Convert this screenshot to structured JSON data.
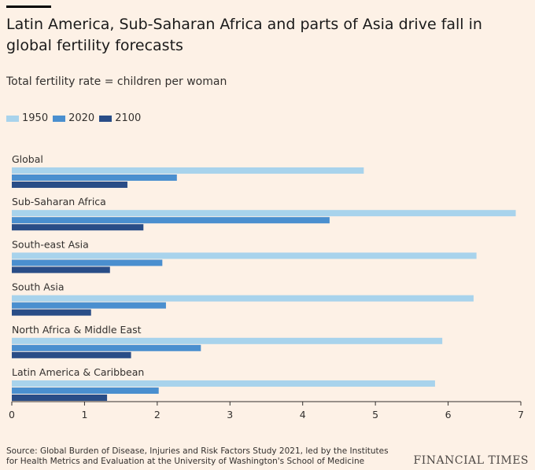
{
  "header": {
    "title": "Latin America, Sub-Saharan Africa and parts of Asia drive fall in global fertility forecasts",
    "subtitle": "Total fertility rate = children per woman"
  },
  "colors": {
    "background": "#fdf1e6",
    "series_1950": "#a8d3ec",
    "series_2020": "#4a8fcf",
    "series_2100": "#294d87"
  },
  "chart_data": {
    "type": "bar",
    "orientation": "horizontal",
    "title": "Latin America, Sub-Saharan Africa and parts of Asia drive fall in global fertility forecasts",
    "subtitle": "Total fertility rate = children per woman",
    "categories": [
      "Global",
      "Sub-Saharan Africa",
      "South-east Asia",
      "South Asia",
      "North Africa & Middle East",
      "Latin America & Caribbean"
    ],
    "series": [
      {
        "name": "1950",
        "color": "#a8d3ec",
        "values": [
          4.84,
          6.93,
          6.39,
          6.35,
          5.92,
          5.82
        ]
      },
      {
        "name": "2020",
        "color": "#4a8fcf",
        "values": [
          2.27,
          4.37,
          2.07,
          2.12,
          2.6,
          2.02
        ]
      },
      {
        "name": "2100",
        "color": "#294d87",
        "values": [
          1.59,
          1.81,
          1.35,
          1.09,
          1.64,
          1.31
        ]
      }
    ],
    "xlim": [
      0,
      7
    ],
    "xticks": [
      "0",
      "1",
      "2",
      "3",
      "4",
      "5",
      "6",
      "7"
    ],
    "legend": "top-left",
    "grid": false
  },
  "footer": {
    "source": "Source: Global Burden of Disease, Injuries and Risk Factors Study 2021, led by the Institutes for Health Metrics and Evaluation at the University of Washington's School of Medicine",
    "brand": "FINANCIAL TIMES"
  }
}
